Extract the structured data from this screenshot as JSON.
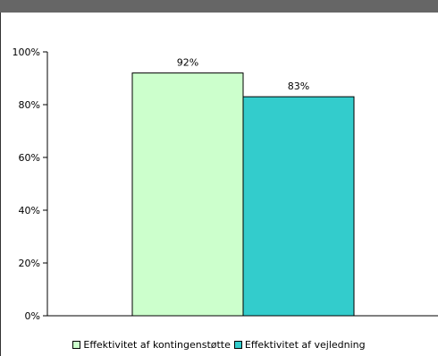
{
  "chart_data": {
    "type": "bar",
    "categories": [
      ""
    ],
    "series": [
      {
        "name": "Effektivitet af kontingenstøtte",
        "values": [
          92
        ],
        "value_label": "92%",
        "color": "#ccffcc"
      },
      {
        "name": "Effektivitet af vejledning",
        "values": [
          83
        ],
        "value_label": "83%",
        "color": "#33cccc"
      }
    ],
    "ylim": [
      0,
      100
    ],
    "yticks": [
      0,
      20,
      40,
      60,
      80,
      100
    ],
    "ytick_labels": [
      "0%",
      "20%",
      "40%",
      "60%",
      "80%",
      "100%"
    ],
    "grid": false,
    "legend_position": "bottom",
    "title": "",
    "xlabel": "",
    "ylabel": ""
  }
}
